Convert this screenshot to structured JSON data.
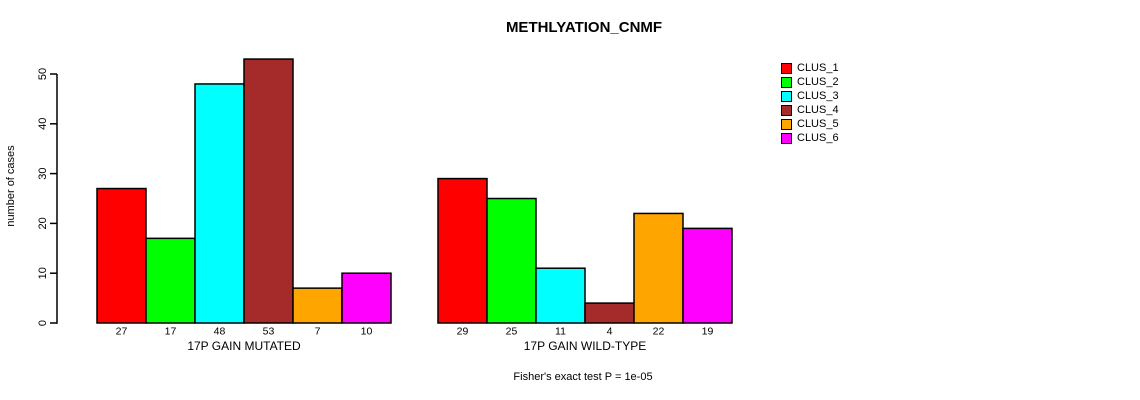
{
  "chart_data": {
    "type": "bar",
    "title": "METHLYATION_CNMF",
    "ylabel": "number of cases",
    "xlabel": "",
    "ylim": [
      0,
      50
    ],
    "yticks": [
      0,
      10,
      20,
      30,
      40,
      50
    ],
    "grid": false,
    "legend_position": "right",
    "bar_value_labels_shown": true,
    "categories": [
      "17P GAIN MUTATED",
      "17P GAIN WILD-TYPE"
    ],
    "series": [
      {
        "name": "CLUS_1",
        "color": "#FF0000",
        "values": [
          27,
          29
        ]
      },
      {
        "name": "CLUS_2",
        "color": "#00FF00",
        "values": [
          17,
          25
        ]
      },
      {
        "name": "CLUS_3",
        "color": "#00FFFF",
        "values": [
          48,
          11
        ]
      },
      {
        "name": "CLUS_4",
        "color": "#A52A2A",
        "values": [
          53,
          4
        ]
      },
      {
        "name": "CLUS_5",
        "color": "#FFA500",
        "values": [
          7,
          22
        ]
      },
      {
        "name": "CLUS_6",
        "color": "#FF00FF",
        "values": [
          10,
          19
        ]
      }
    ],
    "annotation": "Fisher's exact test P = 1e-05",
    "colors": {
      "axis": "#000000",
      "text": "#000000",
      "background": "#FFFFFF"
    }
  }
}
